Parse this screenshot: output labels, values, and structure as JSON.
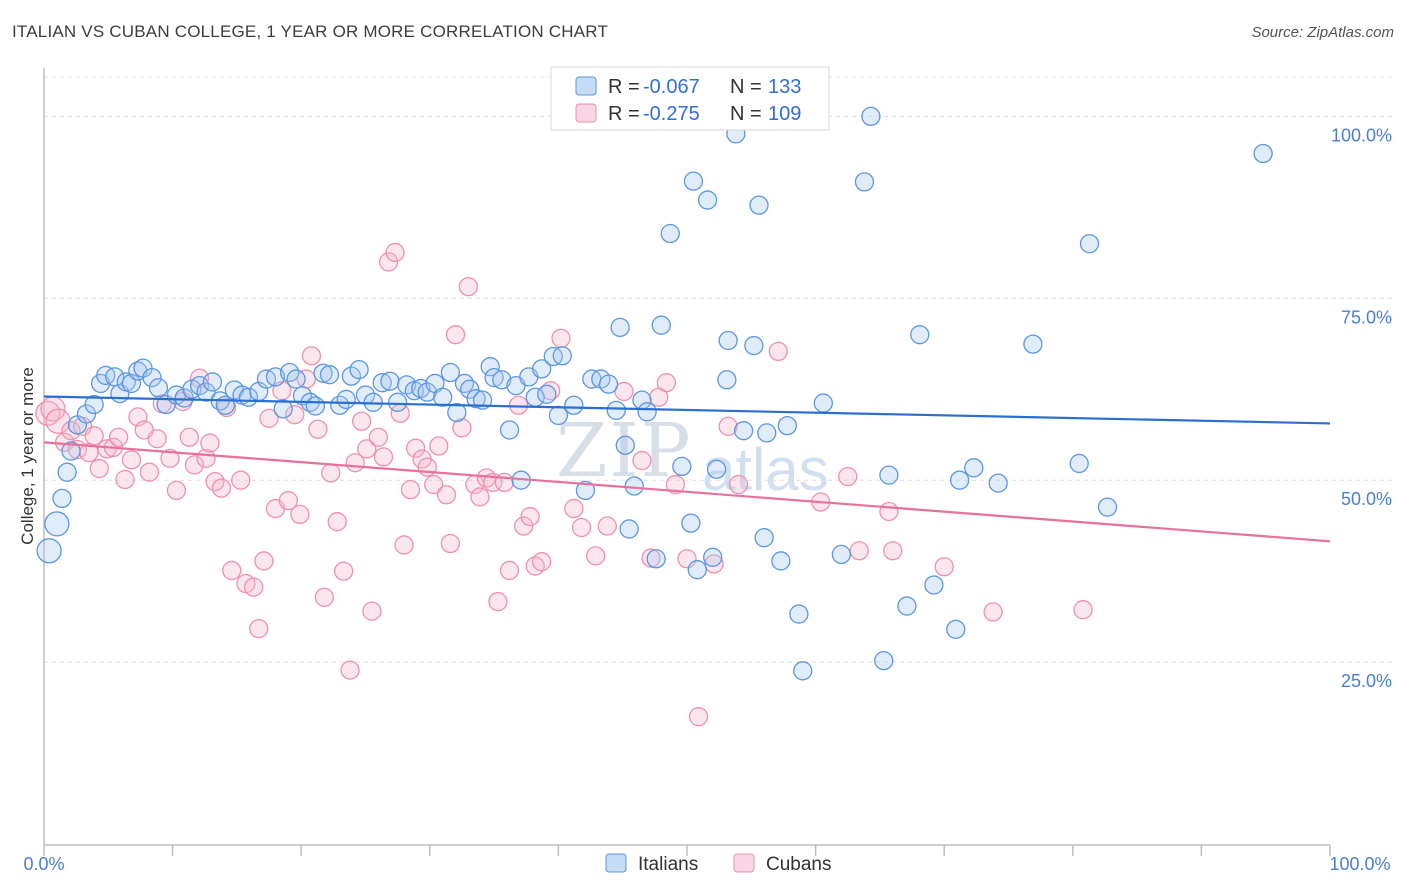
{
  "title": "ITALIAN VS CUBAN COLLEGE, 1 YEAR OR MORE CORRELATION CHART",
  "source": "Source: ZipAtlas.com",
  "watermark": {
    "zip": "ZIP",
    "atlas": "atlas"
  },
  "legend": {
    "rows": [
      {
        "r_label": "R =",
        "r_value": "-0.067",
        "n_label": "N =",
        "n_value": "133",
        "color": "#7fb0ea"
      },
      {
        "r_label": "R =",
        "r_value": "-0.275",
        "n_label": "N =",
        "n_value": "109",
        "color": "#f2a5c0"
      }
    ]
  },
  "bottom_legend": [
    {
      "label": "Italians",
      "color": "#7fb0ea"
    },
    {
      "label": "Cubans",
      "color": "#f2a5c0"
    }
  ],
  "chart_data": {
    "type": "scatter",
    "title": "ITALIAN VS CUBAN COLLEGE, 1 YEAR OR MORE CORRELATION CHART",
    "xlabel": "",
    "ylabel": "College, 1 year or more",
    "xlim": [
      0,
      100
    ],
    "ylim": [
      0,
      105
    ],
    "x_tick_labels": [
      "0.0%",
      "100.0%"
    ],
    "y_ticks": [
      25,
      50,
      75,
      100
    ],
    "y_tick_labels": [
      "25.0%",
      "50.0%",
      "75.0%",
      "100.0%"
    ],
    "grid": true,
    "legend_position": "top-center",
    "colors": {
      "Italians": "#5b96e3",
      "Cubans": "#ee8fb0",
      "italian_line": "#2a6fd0",
      "cuban_line": "#e8709c"
    },
    "series": [
      {
        "name": "Italians",
        "r": -0.067,
        "n": 133,
        "trend": {
          "x": [
            0,
            100
          ],
          "y": [
            61.5,
            57.8
          ]
        },
        "points": [
          [
            0.4,
            40.3
          ],
          [
            1.0,
            44.0
          ],
          [
            1.4,
            47.5
          ],
          [
            1.8,
            51.1
          ],
          [
            2.1,
            54.0
          ],
          [
            2.6,
            57.6
          ],
          [
            3.3,
            59.1
          ],
          [
            3.9,
            60.4
          ],
          [
            4.4,
            63.3
          ],
          [
            4.8,
            64.4
          ],
          [
            5.5,
            64.2
          ],
          [
            5.9,
            61.9
          ],
          [
            6.4,
            63.5
          ],
          [
            6.8,
            63.3
          ],
          [
            7.3,
            65.0
          ],
          [
            7.7,
            65.4
          ],
          [
            8.4,
            64.1
          ],
          [
            8.9,
            62.7
          ],
          [
            9.5,
            60.4
          ],
          [
            10.3,
            61.7
          ],
          [
            10.9,
            61.3
          ],
          [
            11.5,
            62.5
          ],
          [
            12.1,
            63.0
          ],
          [
            12.6,
            62.1
          ],
          [
            13.1,
            63.5
          ],
          [
            13.7,
            60.9
          ],
          [
            14.1,
            60.3
          ],
          [
            14.8,
            62.4
          ],
          [
            15.4,
            61.7
          ],
          [
            15.9,
            61.4
          ],
          [
            16.7,
            62.2
          ],
          [
            17.3,
            63.9
          ],
          [
            18.0,
            64.2
          ],
          [
            18.6,
            59.8
          ],
          [
            19.1,
            64.8
          ],
          [
            19.6,
            63.9
          ],
          [
            20.1,
            61.6
          ],
          [
            20.7,
            60.7
          ],
          [
            21.1,
            60.2
          ],
          [
            21.7,
            64.7
          ],
          [
            22.2,
            64.5
          ],
          [
            23.0,
            60.3
          ],
          [
            23.5,
            61.1
          ],
          [
            23.9,
            64.3
          ],
          [
            24.5,
            65.2
          ],
          [
            25.0,
            61.7
          ],
          [
            25.6,
            60.7
          ],
          [
            26.3,
            63.4
          ],
          [
            26.9,
            63.6
          ],
          [
            27.5,
            60.7
          ],
          [
            28.2,
            63.1
          ],
          [
            28.8,
            62.3
          ],
          [
            29.3,
            62.6
          ],
          [
            29.8,
            62.1
          ],
          [
            30.4,
            63.3
          ],
          [
            31.0,
            61.4
          ],
          [
            31.6,
            64.8
          ],
          [
            32.1,
            59.3
          ],
          [
            32.7,
            63.3
          ],
          [
            33.1,
            62.5
          ],
          [
            33.6,
            61.2
          ],
          [
            34.1,
            61.0
          ],
          [
            34.7,
            65.6
          ],
          [
            35.0,
            64.1
          ],
          [
            35.6,
            63.8
          ],
          [
            36.2,
            56.9
          ],
          [
            36.7,
            63.0
          ],
          [
            37.1,
            50.0
          ],
          [
            37.7,
            64.2
          ],
          [
            38.2,
            61.4
          ],
          [
            38.7,
            65.3
          ],
          [
            39.1,
            61.8
          ],
          [
            39.6,
            67.0
          ],
          [
            40.0,
            58.9
          ],
          [
            40.3,
            67.1
          ],
          [
            41.2,
            60.3
          ],
          [
            42.1,
            48.6
          ],
          [
            42.6,
            63.9
          ],
          [
            43.3,
            63.9
          ],
          [
            43.9,
            63.2
          ],
          [
            44.5,
            59.6
          ],
          [
            44.8,
            71.0
          ],
          [
            45.2,
            54.8
          ],
          [
            45.5,
            43.3
          ],
          [
            45.9,
            49.2
          ],
          [
            46.5,
            61.0
          ],
          [
            46.9,
            59.4
          ],
          [
            47.6,
            39.2
          ],
          [
            48.0,
            71.3
          ],
          [
            48.7,
            83.9
          ],
          [
            49.6,
            51.9
          ],
          [
            50.3,
            44.1
          ],
          [
            50.5,
            91.1
          ],
          [
            50.8,
            37.7
          ],
          [
            51.6,
            88.5
          ],
          [
            52.0,
            39.4
          ],
          [
            52.3,
            51.5
          ],
          [
            53.1,
            63.8
          ],
          [
            53.2,
            69.2
          ],
          [
            53.8,
            97.6
          ],
          [
            54.4,
            56.8
          ],
          [
            55.2,
            68.5
          ],
          [
            55.6,
            87.8
          ],
          [
            56.0,
            42.1
          ],
          [
            56.2,
            56.5
          ],
          [
            57.3,
            38.9
          ],
          [
            57.8,
            57.5
          ],
          [
            58.7,
            31.6
          ],
          [
            59.0,
            23.8
          ],
          [
            60.6,
            60.6
          ],
          [
            62.0,
            39.8
          ],
          [
            63.8,
            91.0
          ],
          [
            64.3,
            100.0
          ],
          [
            65.3,
            25.2
          ],
          [
            65.7,
            50.7
          ],
          [
            67.1,
            32.7
          ],
          [
            68.1,
            70.0
          ],
          [
            69.2,
            35.6
          ],
          [
            70.9,
            29.5
          ],
          [
            71.2,
            50.0
          ],
          [
            72.3,
            51.7
          ],
          [
            74.2,
            49.6
          ],
          [
            76.9,
            68.7
          ],
          [
            80.5,
            52.3
          ],
          [
            81.3,
            82.5
          ],
          [
            82.7,
            46.3
          ],
          [
            94.8,
            94.9
          ]
        ]
      },
      {
        "name": "Cubans",
        "r": -0.275,
        "n": 109,
        "trend": {
          "x": [
            0,
            100
          ],
          "y": [
            55.2,
            41.6
          ]
        },
        "points": [
          [
            0.3,
            59.2
          ],
          [
            0.7,
            59.8
          ],
          [
            1.1,
            58.1
          ],
          [
            1.6,
            55.2
          ],
          [
            2.1,
            56.8
          ],
          [
            2.6,
            54.2
          ],
          [
            3.0,
            57.4
          ],
          [
            3.5,
            53.8
          ],
          [
            3.9,
            56.1
          ],
          [
            4.3,
            51.6
          ],
          [
            4.9,
            54.3
          ],
          [
            5.4,
            54.5
          ],
          [
            5.8,
            55.9
          ],
          [
            6.3,
            50.1
          ],
          [
            6.8,
            52.8
          ],
          [
            7.3,
            58.7
          ],
          [
            7.8,
            56.9
          ],
          [
            8.2,
            51.1
          ],
          [
            8.8,
            55.7
          ],
          [
            9.2,
            60.5
          ],
          [
            9.8,
            53.0
          ],
          [
            10.3,
            48.6
          ],
          [
            10.8,
            60.8
          ],
          [
            11.3,
            55.9
          ],
          [
            11.7,
            52.1
          ],
          [
            12.1,
            64.0
          ],
          [
            12.6,
            53.0
          ],
          [
            12.9,
            55.1
          ],
          [
            13.3,
            49.8
          ],
          [
            13.8,
            48.9
          ],
          [
            14.2,
            60.0
          ],
          [
            14.6,
            37.6
          ],
          [
            15.3,
            50.0
          ],
          [
            15.7,
            35.8
          ],
          [
            16.3,
            35.3
          ],
          [
            16.7,
            29.6
          ],
          [
            17.1,
            38.9
          ],
          [
            17.5,
            58.5
          ],
          [
            18.0,
            46.1
          ],
          [
            18.5,
            62.3
          ],
          [
            19.0,
            47.2
          ],
          [
            19.5,
            59.0
          ],
          [
            19.9,
            45.3
          ],
          [
            20.4,
            63.9
          ],
          [
            20.8,
            67.1
          ],
          [
            21.3,
            57.0
          ],
          [
            21.8,
            33.9
          ],
          [
            22.3,
            51.0
          ],
          [
            22.8,
            44.3
          ],
          [
            23.3,
            37.5
          ],
          [
            23.8,
            23.9
          ],
          [
            24.2,
            52.4
          ],
          [
            24.7,
            58.1
          ],
          [
            25.1,
            54.3
          ],
          [
            25.5,
            32.0
          ],
          [
            26.0,
            55.9
          ],
          [
            26.4,
            53.2
          ],
          [
            26.8,
            80.0
          ],
          [
            27.3,
            81.3
          ],
          [
            27.7,
            59.2
          ],
          [
            28.0,
            41.1
          ],
          [
            28.5,
            48.7
          ],
          [
            28.9,
            54.4
          ],
          [
            29.4,
            52.9
          ],
          [
            29.8,
            51.8
          ],
          [
            30.3,
            49.4
          ],
          [
            30.7,
            54.7
          ],
          [
            31.3,
            48.0
          ],
          [
            31.6,
            41.3
          ],
          [
            32.0,
            70.0
          ],
          [
            32.5,
            57.2
          ],
          [
            33.0,
            76.6
          ],
          [
            33.5,
            49.4
          ],
          [
            33.9,
            47.7
          ],
          [
            34.4,
            50.3
          ],
          [
            34.9,
            49.7
          ],
          [
            35.3,
            33.3
          ],
          [
            35.8,
            49.7
          ],
          [
            36.2,
            37.6
          ],
          [
            36.9,
            60.3
          ],
          [
            37.3,
            43.7
          ],
          [
            37.8,
            45.0
          ],
          [
            38.2,
            38.2
          ],
          [
            38.7,
            38.8
          ],
          [
            39.4,
            62.3
          ],
          [
            40.2,
            69.5
          ],
          [
            41.2,
            46.1
          ],
          [
            41.8,
            43.5
          ],
          [
            42.9,
            39.6
          ],
          [
            43.8,
            43.7
          ],
          [
            45.1,
            62.2
          ],
          [
            46.5,
            52.7
          ],
          [
            47.2,
            39.3
          ],
          [
            47.8,
            61.4
          ],
          [
            48.4,
            63.4
          ],
          [
            49.1,
            49.4
          ],
          [
            50.0,
            39.2
          ],
          [
            50.9,
            17.5
          ],
          [
            52.1,
            38.5
          ],
          [
            53.2,
            57.4
          ],
          [
            54.0,
            49.4
          ],
          [
            57.1,
            67.7
          ],
          [
            60.4,
            47.0
          ],
          [
            62.5,
            50.5
          ],
          [
            63.4,
            40.3
          ],
          [
            65.7,
            45.7
          ],
          [
            66.0,
            40.3
          ],
          [
            70.0,
            38.1
          ],
          [
            73.8,
            31.9
          ],
          [
            80.8,
            32.2
          ]
        ]
      }
    ]
  }
}
